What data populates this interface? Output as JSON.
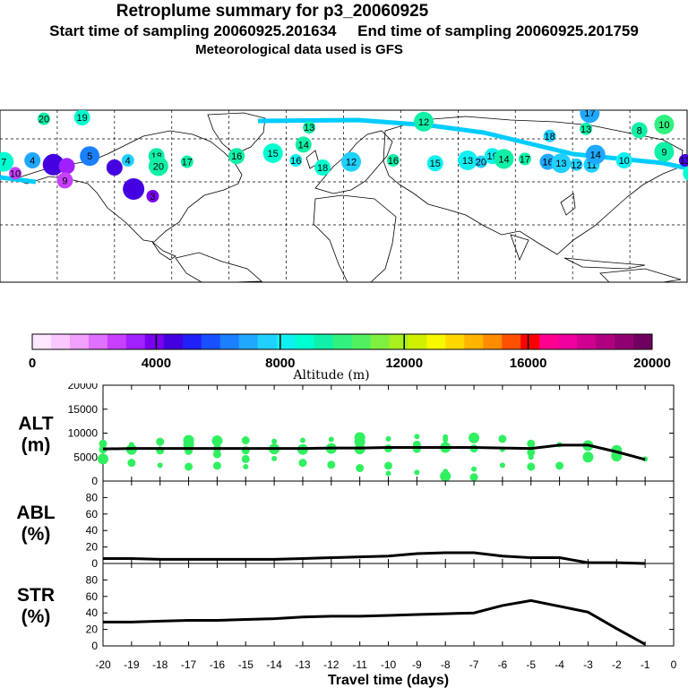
{
  "header": {
    "title": "Retroplume summary for p3_20060925",
    "sampling": "Start time of sampling 20060925.201634     End time of sampling 20060925.201759",
    "met": "Meteorological data used is GFS"
  },
  "colors": {
    "scale": [
      "#ffe6ff",
      "#f8c8ff",
      "#f0a0ff",
      "#e070ff",
      "#c840ff",
      "#a020ff",
      "#7a00f0",
      "#4400e0",
      "#2020f8",
      "#1850ff",
      "#1a80ff",
      "#20a8ff",
      "#20d0ff",
      "#10f0f0",
      "#00ffd0",
      "#10f0a8",
      "#30f080",
      "#50f060",
      "#80f040",
      "#a8f020",
      "#d0f000",
      "#f8f800",
      "#ffd800",
      "#ffb400",
      "#ff8c00",
      "#ff5000",
      "#ff0000",
      "#ff0090",
      "#f000a0",
      "#d00090",
      "#b00080",
      "#900070",
      "#700060"
    ],
    "marker": "#30f060",
    "track": "#00ccff"
  },
  "colorbar": {
    "ticks": [
      "0",
      "4000",
      "8000",
      "12000",
      "16000",
      "20000"
    ],
    "label": "Altitude (m)"
  },
  "map": {
    "clusters": [
      {
        "label": "20",
        "lon": -157,
        "lat": 74,
        "alt": 9500
      },
      {
        "label": "19",
        "lon": -137,
        "lat": 75,
        "alt": 9000
      },
      {
        "label": "7",
        "lon": -178,
        "lat": 44,
        "alt": 8500
      },
      {
        "label": "10",
        "lon": -172,
        "lat": 36,
        "alt": 2500
      },
      {
        "label": "4",
        "lon": -163,
        "lat": 45,
        "alt": 7000
      },
      {
        "label": "",
        "lon": -152,
        "lat": 42,
        "alt": 4500
      },
      {
        "label": "",
        "lon": -145,
        "lat": 41,
        "alt": 3500
      },
      {
        "label": "9",
        "lon": -146,
        "lat": 31,
        "alt": 3000
      },
      {
        "label": "5",
        "lon": -133,
        "lat": 48,
        "alt": 6500
      },
      {
        "label": "4",
        "lon": -113,
        "lat": 45,
        "alt": 7500
      },
      {
        "label": "",
        "lon": -120,
        "lat": 40,
        "alt": 4800
      },
      {
        "label": "",
        "lon": -110,
        "lat": 25,
        "alt": 4300
      },
      {
        "label": "3",
        "lon": -100,
        "lat": 20,
        "alt": 3700
      },
      {
        "label": "18",
        "lon": -98,
        "lat": 48,
        "alt": 9300
      },
      {
        "label": "20",
        "lon": -97,
        "lat": 41,
        "alt": 9500
      },
      {
        "label": "17",
        "lon": -82,
        "lat": 44,
        "alt": 9100
      },
      {
        "label": "16",
        "lon": -56,
        "lat": 48,
        "alt": 9200
      },
      {
        "label": "15",
        "lon": -37,
        "lat": 50,
        "alt": 9000
      },
      {
        "label": "16",
        "lon": -25,
        "lat": 45,
        "alt": 8300
      },
      {
        "label": "18",
        "lon": -11,
        "lat": 40,
        "alt": 9000
      },
      {
        "label": "12",
        "lon": 4,
        "lat": 44,
        "alt": 7800
      },
      {
        "label": "13",
        "lon": -18,
        "lat": 68,
        "alt": 9200
      },
      {
        "label": "14",
        "lon": -21,
        "lat": 56,
        "alt": 9400
      },
      {
        "label": "12",
        "lon": 42,
        "lat": 72,
        "alt": 9100
      },
      {
        "label": "16",
        "lon": 26,
        "lat": 45,
        "alt": 9300
      },
      {
        "label": "15",
        "lon": 48,
        "lat": 43,
        "alt": 8400
      },
      {
        "label": "13",
        "lon": 65,
        "lat": 45,
        "alt": 8200
      },
      {
        "label": "20",
        "lon": 72,
        "lat": 44,
        "alt": 7500
      },
      {
        "label": "19",
        "lon": 78,
        "lat": 48,
        "alt": 8000
      },
      {
        "label": "14",
        "lon": 84,
        "lat": 46,
        "alt": 9200
      },
      {
        "label": "17",
        "lon": 95,
        "lat": 46,
        "alt": 9300
      },
      {
        "label": "16",
        "lon": 107,
        "lat": 44,
        "alt": 7200
      },
      {
        "label": "13",
        "lon": 114,
        "lat": 43,
        "alt": 7400
      },
      {
        "label": "12",
        "lon": 122,
        "lat": 42,
        "alt": 7400
      },
      {
        "label": "11",
        "lon": 130,
        "lat": 42,
        "alt": 7600
      },
      {
        "label": "14",
        "lon": 132,
        "lat": 49,
        "alt": 7100
      },
      {
        "label": "18",
        "lon": 108,
        "lat": 62,
        "alt": 7300
      },
      {
        "label": "10",
        "lon": 147,
        "lat": 45,
        "alt": 8300
      },
      {
        "label": "9",
        "lon": 168,
        "lat": 51,
        "alt": 9200
      },
      {
        "label": "13",
        "lon": 179,
        "lat": 45,
        "alt": 4500
      },
      {
        "label": "7",
        "lon": 182,
        "lat": 36,
        "alt": 8600
      },
      {
        "label": "17",
        "lon": 129,
        "lat": 78,
        "alt": 7000
      },
      {
        "label": "13",
        "lon": 127,
        "lat": 67,
        "alt": 9400
      },
      {
        "label": "8",
        "lon": 155,
        "lat": 66,
        "alt": 9500
      },
      {
        "label": "10",
        "lon": 168,
        "lat": 70,
        "alt": 9800
      },
      {
        "label": "6",
        "lon": 185,
        "lat": 34,
        "alt": 8800
      }
    ]
  },
  "chart_data": [
    {
      "type": "scatter",
      "title": "ALT",
      "ylabel": "ALT\n(m)",
      "ylim": [
        0,
        20000
      ],
      "yticks": [
        "20000",
        "15000",
        "10000",
        "5000",
        "0"
      ],
      "xlim": [
        -20,
        0
      ],
      "median_line": {
        "x": [
          -20,
          -19,
          -18,
          -17,
          -16,
          -15,
          -14,
          -13,
          -12,
          -11,
          -10,
          -9,
          -8,
          -7,
          -6,
          -5,
          -4,
          -3,
          -2,
          -1
        ],
        "y": [
          6700,
          6800,
          6800,
          6800,
          6800,
          6800,
          6800,
          6800,
          6900,
          6900,
          7000,
          7000,
          7000,
          7000,
          6900,
          6800,
          7500,
          7500,
          6100,
          4500
        ]
      },
      "points": [
        {
          "x": -20,
          "y": 7800
        },
        {
          "x": -20,
          "y": 6600
        },
        {
          "x": -20,
          "y": 4600
        },
        {
          "x": -19,
          "y": 7600
        },
        {
          "x": -19,
          "y": 6600
        },
        {
          "x": -19,
          "y": 3800
        },
        {
          "x": -18,
          "y": 8200
        },
        {
          "x": -18,
          "y": 6400
        },
        {
          "x": -18,
          "y": 3300
        },
        {
          "x": -17,
          "y": 8500
        },
        {
          "x": -17,
          "y": 7600
        },
        {
          "x": -17,
          "y": 6300
        },
        {
          "x": -17,
          "y": 3000
        },
        {
          "x": -16,
          "y": 8400
        },
        {
          "x": -16,
          "y": 6800
        },
        {
          "x": -16,
          "y": 5600
        },
        {
          "x": -16,
          "y": 3200
        },
        {
          "x": -15,
          "y": 8500
        },
        {
          "x": -15,
          "y": 6400
        },
        {
          "x": -15,
          "y": 4600
        },
        {
          "x": -15,
          "y": 3000
        },
        {
          "x": -14,
          "y": 8300
        },
        {
          "x": -14,
          "y": 6700
        },
        {
          "x": -14,
          "y": 4700
        },
        {
          "x": -13,
          "y": 8500
        },
        {
          "x": -13,
          "y": 6600
        },
        {
          "x": -13,
          "y": 3800
        },
        {
          "x": -12,
          "y": 8700
        },
        {
          "x": -12,
          "y": 6800
        },
        {
          "x": -12,
          "y": 3400
        },
        {
          "x": -11,
          "y": 9100
        },
        {
          "x": -11,
          "y": 8200
        },
        {
          "x": -11,
          "y": 6700
        },
        {
          "x": -11,
          "y": 2700
        },
        {
          "x": -10,
          "y": 8800
        },
        {
          "x": -10,
          "y": 6800
        },
        {
          "x": -10,
          "y": 3200
        },
        {
          "x": -10,
          "y": 1600
        },
        {
          "x": -9,
          "y": 9300
        },
        {
          "x": -9,
          "y": 7600
        },
        {
          "x": -9,
          "y": 6700
        },
        {
          "x": -9,
          "y": 1800
        },
        {
          "x": -8,
          "y": 9200
        },
        {
          "x": -8,
          "y": 8600
        },
        {
          "x": -8,
          "y": 7000
        },
        {
          "x": -8,
          "y": 2000
        },
        {
          "x": -8,
          "y": 1000
        },
        {
          "x": -7,
          "y": 9000
        },
        {
          "x": -7,
          "y": 6800
        },
        {
          "x": -7,
          "y": 2500
        },
        {
          "x": -7,
          "y": 800
        },
        {
          "x": -6,
          "y": 8800
        },
        {
          "x": -6,
          "y": 6600
        },
        {
          "x": -6,
          "y": 3300
        },
        {
          "x": -5,
          "y": 7800
        },
        {
          "x": -5,
          "y": 6000
        },
        {
          "x": -5,
          "y": 5000
        },
        {
          "x": -5,
          "y": 3000
        },
        {
          "x": -4,
          "y": 7600
        },
        {
          "x": -4,
          "y": 3200
        },
        {
          "x": -3,
          "y": 7400
        },
        {
          "x": -3,
          "y": 5000
        },
        {
          "x": -2,
          "y": 6400
        },
        {
          "x": -2,
          "y": 5200
        },
        {
          "x": -1,
          "y": 4600
        }
      ]
    },
    {
      "type": "line",
      "title": "ABL",
      "ylabel": "ABL\n(%)",
      "ylim": [
        0,
        100
      ],
      "yticks": [
        "80",
        "60",
        "40",
        "20",
        "0"
      ],
      "x": [
        -20,
        -19,
        -18,
        -17,
        -16,
        -15,
        -14,
        -13,
        -12,
        -11,
        -10,
        -9,
        -8,
        -7,
        -6,
        -5,
        -4,
        -3,
        -2,
        -1
      ],
      "y": [
        6,
        6,
        5,
        5,
        5,
        5,
        5,
        6,
        7,
        8,
        9,
        12,
        13,
        13,
        9,
        7,
        7,
        1,
        1,
        0
      ]
    },
    {
      "type": "line",
      "title": "STR",
      "ylabel": "STR\n(%)",
      "ylim": [
        0,
        100
      ],
      "yticks": [
        "80",
        "60",
        "40",
        "20",
        "0"
      ],
      "xlabel": "Travel time (days)",
      "xticks": [
        "-20",
        "-19",
        "-18",
        "-17",
        "-16",
        "-15",
        "-14",
        "-13",
        "-12",
        "-11",
        "-10",
        "-9",
        "-8",
        "-7",
        "-6",
        "-5",
        "-4",
        "-3",
        "-2",
        "-1",
        "0"
      ],
      "x": [
        -20,
        -19,
        -18,
        -17,
        -16,
        -15,
        -14,
        -13,
        -12,
        -11,
        -10,
        -9,
        -8,
        -7,
        -6,
        -5,
        -4,
        -3,
        -2,
        -1
      ],
      "y": [
        29,
        29,
        30,
        31,
        31,
        32,
        33,
        35,
        36,
        36,
        37,
        38,
        39,
        40,
        49,
        55,
        48,
        41,
        21,
        2
      ]
    }
  ]
}
